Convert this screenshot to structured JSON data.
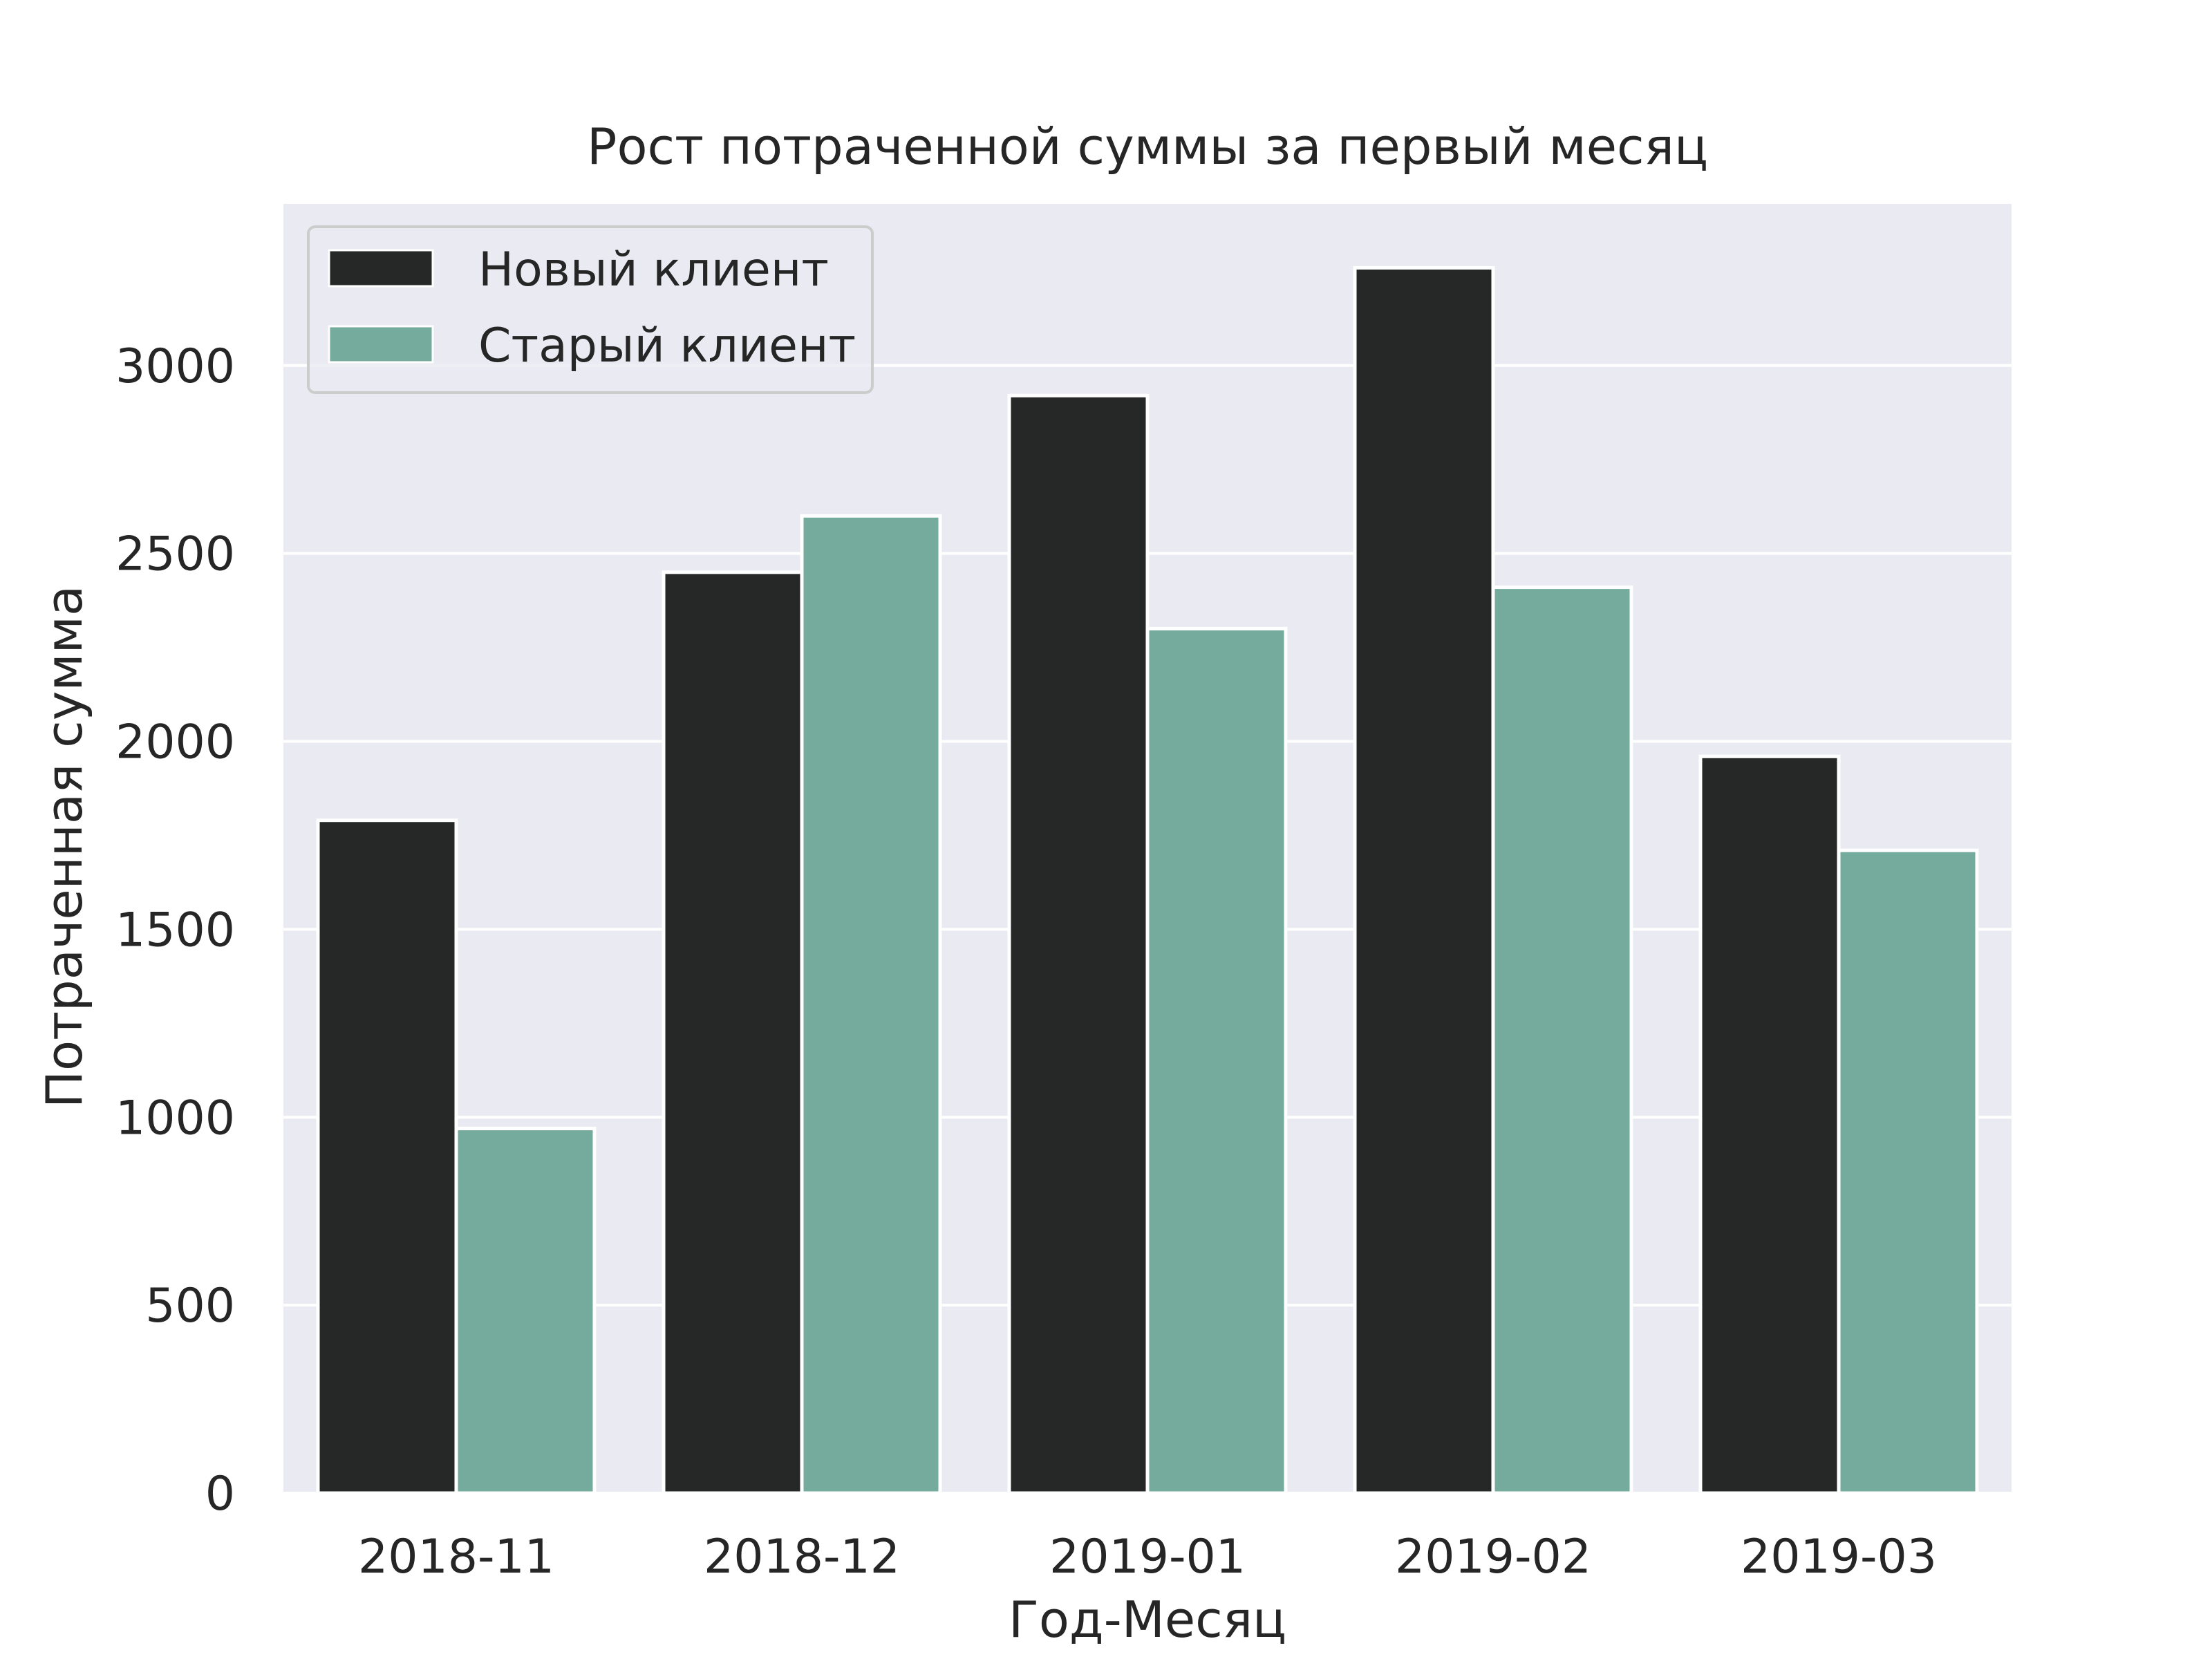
{
  "chart_data": {
    "type": "bar",
    "title": "Рост потраченной суммы за первый месяц",
    "xlabel": "Год-Месяц",
    "ylabel": "Потраченная сумма",
    "categories": [
      "2018-11",
      "2018-12",
      "2019-01",
      "2019-02",
      "2019-03"
    ],
    "series": [
      {
        "name": "Новый клиент",
        "color": "#252827",
        "values": [
          1790,
          2450,
          2920,
          3260,
          1960
        ]
      },
      {
        "name": "Старый клиент",
        "color": "#74ab9d",
        "values": [
          970,
          2600,
          2300,
          2410,
          1710
        ]
      }
    ],
    "ylim": [
      0,
      3430
    ],
    "yticks": [
      0,
      500,
      1000,
      1500,
      2000,
      2500,
      3000
    ],
    "grid": true,
    "legend": "top-left",
    "colors": {
      "background": "#eaeaf2",
      "grid": "#ffffff",
      "text": "#262626"
    }
  }
}
